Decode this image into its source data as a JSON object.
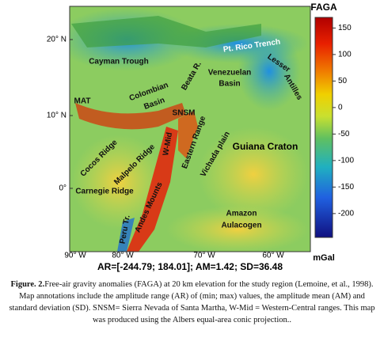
{
  "map": {
    "colorbar": {
      "title": "FAGA",
      "unit": "mGal",
      "lim": [
        -245,
        170
      ],
      "ticks": [
        150,
        100,
        50,
        0,
        -50,
        -100,
        -150,
        -200
      ]
    },
    "lat_labels": [
      "20° N",
      "10° N",
      "0°"
    ],
    "lon_labels": [
      "90° W",
      "80° W",
      "70° W",
      "60° W"
    ],
    "stats": "AR=[-244.79; 184.01]; AM=1.42; SD=36.48",
    "labels": [
      "Cayman Trough",
      "Pt. Rico Trench",
      "Lesser",
      "Antilles",
      "Venezuelan",
      "Basin",
      "Beata R.",
      "Colombian",
      "Basin",
      "MAT",
      "SNSM",
      "Eastern Range",
      "W-Mid",
      "Vichada plain",
      "Guiana Craton",
      "Cocos Ridge",
      "Malpelo Ridge",
      "Carnegie Ridge",
      "Andes Mounts",
      "Peru Tr.",
      "Amazon",
      "Aulacogen"
    ]
  },
  "caption": {
    "label": "Figure. 2.",
    "text": "Free-air gravity anomalies (FAGA) at 20 km elevation for the study region (Lemoine, et al., 1998). Map annotations include the amplitude range (AR) of (min; max) values, the amplitude mean (AM) and standard deviation (SD). SNSM= Sierra Nevada of Santa Martha, W-Mid = Western-Central ranges. This map was produced using the Albers equal-area conic projection.."
  }
}
